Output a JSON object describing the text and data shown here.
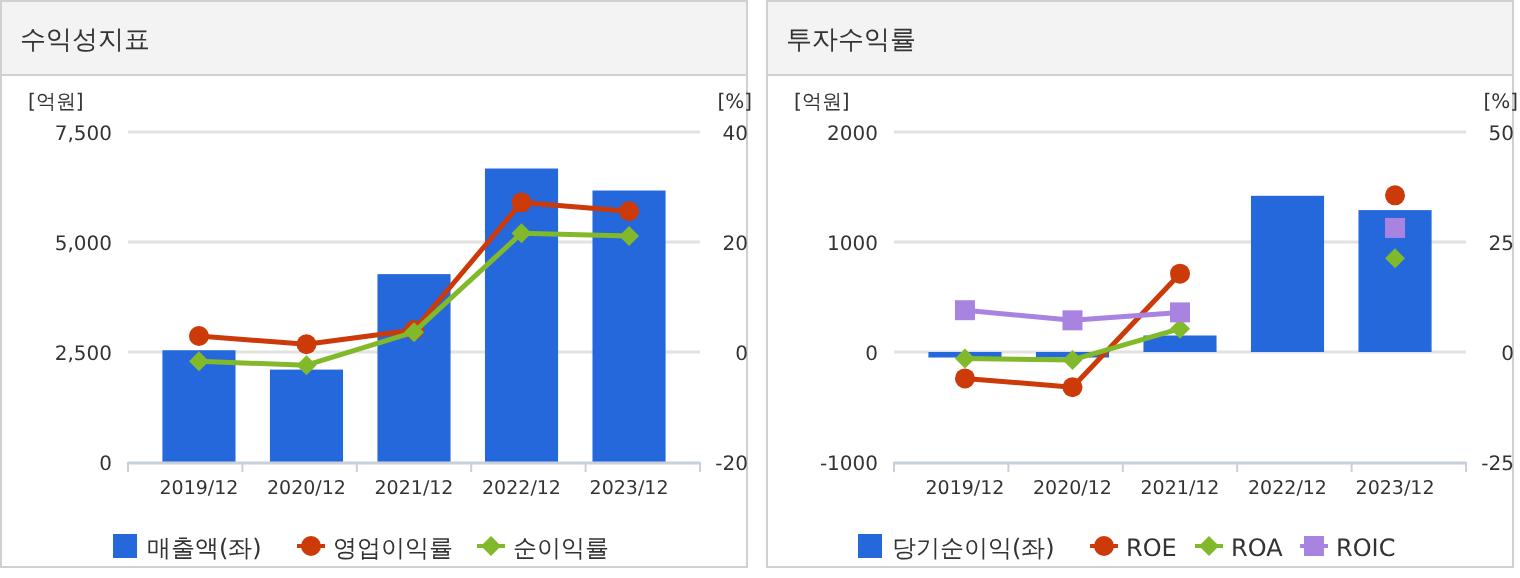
{
  "chart_data": [
    {
      "type": "bar",
      "title": "수익성지표",
      "categories": [
        "2019/12",
        "2020/12",
        "2021/12",
        "2022/12",
        "2023/12"
      ],
      "ylabel": "[억원]",
      "y2label": "[%]",
      "ylim": [
        0,
        7500
      ],
      "yticks": [
        0,
        {
          "value": 2500,
          "label": "2,500"
        },
        {
          "value": 5000,
          "label": "5,000"
        },
        {
          "value": 7500,
          "label": "7,500"
        }
      ],
      "y2lim": [
        -20,
        40
      ],
      "y2ticks": [
        -20,
        0,
        20,
        40
      ],
      "grid": "y",
      "legend": "bottom",
      "series": [
        {
          "name": "매출액(좌)",
          "color": "#2468dc",
          "values": [
            2540,
            2100,
            4270,
            6670,
            6170
          ]
        },
        {
          "name": "영업이익률",
          "type": "line",
          "axis": "y2",
          "marker": "circle",
          "color": "#cc3a0a",
          "values": [
            2.9,
            1.4,
            4.0,
            27.2,
            25.6
          ]
        },
        {
          "name": "순이익률",
          "type": "line",
          "axis": "y2",
          "marker": "diamond",
          "color": "#82b92a",
          "values": [
            -1.7,
            -2.4,
            3.6,
            21.6,
            21.1
          ]
        }
      ]
    },
    {
      "type": "bar",
      "title": "투자수익률",
      "categories": [
        "2019/12",
        "2020/12",
        "2021/12",
        "2022/12",
        "2023/12"
      ],
      "ylabel": "[억원]",
      "y2label": "[%]",
      "ylim": [
        -1000,
        2000
      ],
      "yticks": [
        -1000,
        0,
        1000,
        2000
      ],
      "y2lim": [
        -25,
        50
      ],
      "y2ticks": [
        -25,
        0,
        25,
        50
      ],
      "grid": "y",
      "legend": "bottom",
      "series": [
        {
          "name": "당기순이익(좌)",
          "color": "#2468dc",
          "values": [
            -50,
            -50,
            150,
            1420,
            1290
          ]
        },
        {
          "name": "ROE",
          "type": "line",
          "axis": "y2",
          "marker": "circle",
          "color": "#cc3a0a",
          "values": [
            -6.0,
            -8.0,
            17.8,
            null,
            35.6
          ]
        },
        {
          "name": "ROA",
          "type": "line",
          "axis": "y2",
          "marker": "diamond",
          "color": "#82b92a",
          "values": [
            -1.5,
            -1.8,
            5.3,
            null,
            21.3
          ]
        },
        {
          "name": "ROIC",
          "type": "line",
          "axis": "y2",
          "marker": "square",
          "color": "#a983e0",
          "values": [
            9.5,
            7.2,
            9.0,
            null,
            28.2
          ]
        }
      ]
    }
  ]
}
